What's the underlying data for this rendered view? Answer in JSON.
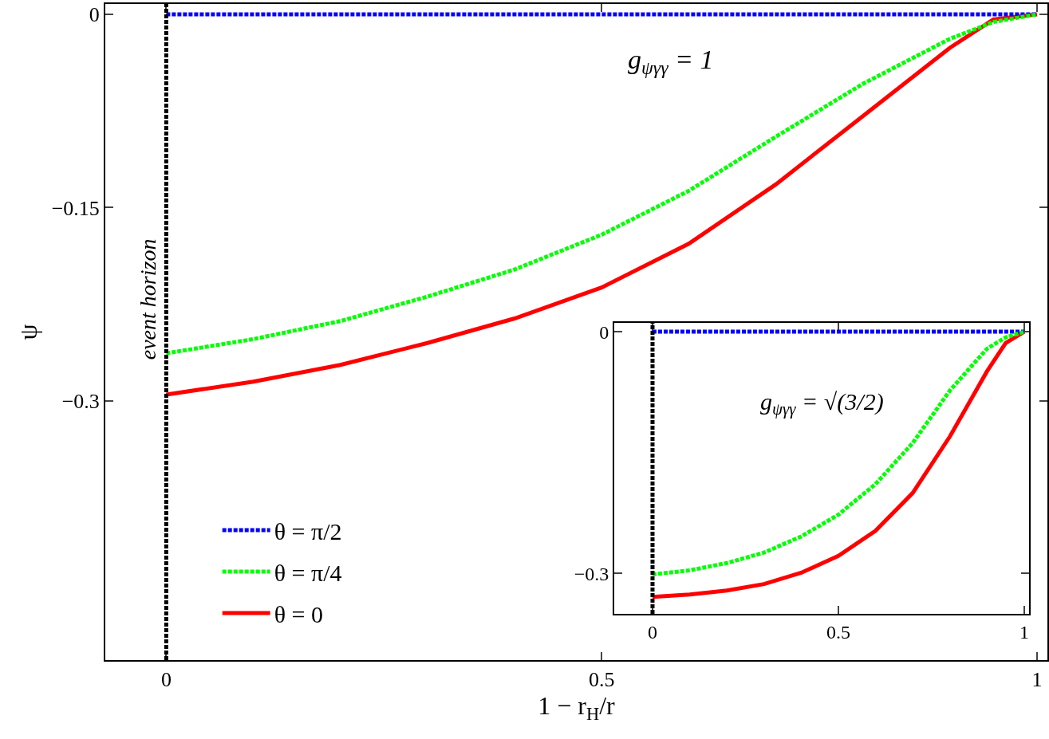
{
  "chart_data": [
    {
      "type": "line",
      "xlabel": "1 − r$_{H}$/r",
      "ylabel": "ψ",
      "xlim": [
        -0.07,
        1.012
      ],
      "ylim": [
        -0.501,
        0.008
      ],
      "xticks": [
        0,
        0.5,
        1
      ],
      "yticks": [
        0,
        -0.15,
        -0.3
      ],
      "legend": "bottom left",
      "marker": "none",
      "annotations": [
        "g$_{ψγγ}$ = 1"
      ],
      "ref_lines": [
        {
          "axis": "x",
          "value": 0,
          "label": "event horizon",
          "color": "#000000",
          "line_style": "dotted"
        }
      ],
      "x": [
        0,
        0.1,
        0.2,
        0.3,
        0.4,
        0.5,
        0.6,
        0.7,
        0.8,
        0.9,
        0.95,
        1
      ],
      "series": [
        {
          "name": "θ = π/2",
          "color": "#0000ff",
          "line_style": "dotted",
          "values": [
            0,
            0,
            0,
            0,
            0,
            0,
            0,
            0,
            0,
            0,
            0,
            0
          ]
        },
        {
          "name": "θ = π/4",
          "color": "#00ff00",
          "line_style": "dotted",
          "values": [
            -0.263,
            -0.252,
            -0.238,
            -0.219,
            -0.198,
            -0.171,
            -0.137,
            -0.095,
            -0.054,
            -0.019,
            -0.006,
            0
          ]
        },
        {
          "name": "θ = 0",
          "color": "#ff0000",
          "line_style": "solid",
          "values": [
            -0.295,
            -0.285,
            -0.272,
            -0.255,
            -0.236,
            -0.212,
            -0.178,
            -0.132,
            -0.079,
            -0.026,
            -0.004,
            0
          ]
        }
      ]
    },
    {
      "type": "line",
      "xlim": [
        -0.103,
        1.013
      ],
      "ylim": [
        -0.35,
        0.011
      ],
      "xticks": [
        0,
        0.5,
        1
      ],
      "yticks": [
        0,
        -0.3
      ],
      "marker": "none",
      "annotations": [
        "g$_{ψγγ}$ = √(3/2)"
      ],
      "ref_lines": [
        {
          "axis": "x",
          "value": 0,
          "color": "#000000",
          "line_style": "dotted"
        }
      ],
      "x": [
        0,
        0.1,
        0.2,
        0.3,
        0.4,
        0.5,
        0.6,
        0.7,
        0.8,
        0.9,
        0.95,
        1
      ],
      "series": [
        {
          "color": "#0000ff",
          "line_style": "dotted",
          "values": [
            0,
            0,
            0,
            0,
            0,
            0,
            0,
            0,
            0,
            0,
            0,
            0
          ]
        },
        {
          "color": "#00ff00",
          "line_style": "dotted",
          "values": [
            -0.301,
            -0.296,
            -0.287,
            -0.274,
            -0.254,
            -0.227,
            -0.189,
            -0.138,
            -0.073,
            -0.021,
            -0.007,
            0
          ]
        },
        {
          "color": "#ff0000",
          "line_style": "solid",
          "values": [
            -0.329,
            -0.326,
            -0.321,
            -0.313,
            -0.299,
            -0.278,
            -0.247,
            -0.2,
            -0.13,
            -0.049,
            -0.014,
            0
          ]
        }
      ]
    }
  ]
}
